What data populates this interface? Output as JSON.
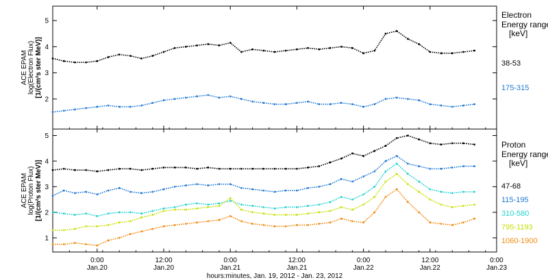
{
  "figure": {
    "xlabel": "hours:minutes, Jan. 19, 2012 - Jan. 23, 2012",
    "x_ticks": [
      {
        "x": 0,
        "time": "0:00",
        "date": "Jan.20"
      },
      {
        "x": 12,
        "time": "12:00",
        "date": "Jan.20"
      },
      {
        "x": 24,
        "time": "0:00",
        "date": "Jan.21"
      },
      {
        "x": 36,
        "time": "12:00",
        "date": "Jan.21"
      },
      {
        "x": 48,
        "time": "0:00",
        "date": "Jan.22"
      },
      {
        "x": 60,
        "time": "12:00",
        "date": "Jan.22"
      },
      {
        "x": 72,
        "time": "0:00",
        "date": "Jan.23"
      }
    ],
    "xlim": [
      -8,
      72
    ]
  },
  "chart_data": [
    {
      "type": "scatter",
      "ylabel": [
        "ACE EPAM",
        "log(Electron Flux)",
        "[1/(cm²s ster MeV)]"
      ],
      "ylim": [
        0.9,
        5.5
      ],
      "y_ticks": [
        2,
        3,
        4,
        5
      ],
      "legend_title": [
        "Electron",
        "Energy range",
        "[keV]"
      ],
      "series": [
        {
          "name": "38-53",
          "color": "#000000",
          "x": [
            -8,
            -6,
            -4,
            -2,
            0,
            2,
            4,
            6,
            8,
            10,
            12,
            14,
            16,
            18,
            20,
            22,
            24,
            26,
            28,
            30,
            32,
            34,
            36,
            38,
            40,
            42,
            44,
            46,
            48,
            50,
            52,
            54,
            56,
            58,
            60,
            62,
            64,
            66,
            68
          ],
          "y": [
            3.55,
            3.45,
            3.4,
            3.4,
            3.45,
            3.6,
            3.7,
            3.65,
            3.55,
            3.65,
            3.8,
            3.95,
            4.0,
            4.05,
            4.1,
            4.05,
            4.15,
            3.8,
            3.9,
            3.85,
            3.8,
            3.85,
            3.9,
            3.95,
            3.9,
            3.95,
            4.0,
            3.95,
            3.75,
            3.85,
            4.5,
            4.6,
            4.3,
            4.1,
            3.8,
            3.75,
            3.75,
            3.8,
            3.85
          ]
        },
        {
          "name": "175-315",
          "color": "#1f78d4",
          "x": [
            -8,
            -6,
            -4,
            -2,
            0,
            2,
            4,
            6,
            8,
            10,
            12,
            14,
            16,
            18,
            20,
            22,
            24,
            26,
            28,
            30,
            32,
            34,
            36,
            38,
            40,
            42,
            44,
            46,
            48,
            50,
            52,
            54,
            56,
            58,
            60,
            62,
            64,
            66,
            68
          ],
          "y": [
            1.5,
            1.55,
            1.6,
            1.65,
            1.7,
            1.75,
            1.7,
            1.7,
            1.75,
            1.85,
            1.95,
            2.0,
            2.05,
            2.1,
            2.15,
            2.05,
            2.1,
            2.0,
            1.9,
            1.85,
            1.8,
            1.8,
            1.85,
            1.9,
            1.8,
            1.8,
            1.85,
            1.8,
            1.7,
            1.8,
            2.0,
            2.05,
            2.0,
            1.95,
            1.8,
            1.75,
            1.7,
            1.75,
            1.8
          ]
        }
      ]
    },
    {
      "type": "scatter",
      "ylabel": [
        "ACE EPAM",
        "log(Proton Flux)",
        "[1/(cm²s ster MeV)]"
      ],
      "ylim": [
        0.5,
        5.2
      ],
      "y_ticks": [
        1,
        2,
        3,
        4,
        5
      ],
      "legend_title": [
        "Proton",
        "Energy range",
        "[keV]"
      ],
      "series": [
        {
          "name": "47-68",
          "color": "#000000",
          "x": [
            -8,
            -6,
            -4,
            -2,
            0,
            2,
            4,
            6,
            8,
            10,
            12,
            14,
            16,
            18,
            20,
            22,
            24,
            26,
            28,
            30,
            32,
            34,
            36,
            38,
            40,
            42,
            44,
            46,
            48,
            50,
            52,
            54,
            56,
            58,
            60,
            62,
            64,
            66,
            68
          ],
          "y": [
            3.65,
            3.7,
            3.65,
            3.65,
            3.6,
            3.65,
            3.7,
            3.7,
            3.65,
            3.7,
            3.75,
            3.75,
            3.75,
            3.7,
            3.75,
            3.7,
            3.7,
            3.7,
            3.7,
            3.7,
            3.7,
            3.7,
            3.7,
            3.75,
            3.8,
            3.95,
            4.1,
            4.3,
            4.2,
            4.4,
            4.6,
            4.9,
            5.0,
            4.85,
            4.7,
            4.65,
            4.7,
            4.7,
            4.65
          ]
        },
        {
          "name": "115-195",
          "color": "#1f78d4",
          "x": [
            -8,
            -6,
            -4,
            -2,
            0,
            2,
            4,
            6,
            8,
            10,
            12,
            14,
            16,
            18,
            20,
            22,
            24,
            26,
            28,
            30,
            32,
            34,
            36,
            38,
            40,
            42,
            44,
            46,
            48,
            50,
            52,
            54,
            56,
            58,
            60,
            62,
            64,
            66,
            68
          ],
          "y": [
            2.65,
            2.85,
            2.75,
            2.8,
            2.7,
            2.85,
            2.95,
            2.8,
            2.75,
            2.8,
            2.9,
            3.0,
            3.05,
            3.1,
            3.05,
            3.1,
            3.1,
            2.95,
            2.9,
            2.85,
            2.8,
            2.85,
            2.85,
            2.95,
            3.0,
            3.1,
            3.3,
            3.2,
            3.4,
            3.6,
            4.0,
            4.2,
            3.9,
            3.8,
            3.7,
            3.7,
            3.75,
            3.8,
            3.8
          ]
        },
        {
          "name": "310-580",
          "color": "#20d0d0",
          "x": [
            -8,
            -6,
            -4,
            -2,
            0,
            2,
            4,
            6,
            8,
            10,
            12,
            14,
            16,
            18,
            20,
            22,
            24,
            26,
            28,
            30,
            32,
            34,
            36,
            38,
            40,
            42,
            44,
            46,
            48,
            50,
            52,
            54,
            56,
            58,
            60,
            62,
            64,
            66,
            68
          ],
          "y": [
            2.0,
            1.95,
            1.9,
            1.95,
            1.85,
            1.95,
            2.0,
            2.0,
            1.95,
            2.05,
            2.15,
            2.2,
            2.3,
            2.35,
            2.3,
            2.35,
            2.45,
            2.3,
            2.25,
            2.2,
            2.15,
            2.2,
            2.2,
            2.25,
            2.3,
            2.4,
            2.6,
            2.5,
            2.7,
            3.0,
            3.6,
            3.9,
            3.5,
            3.2,
            2.9,
            2.8,
            2.75,
            2.8,
            2.8
          ]
        },
        {
          "name": "795-1193",
          "color": "#c8e000",
          "x": [
            -8,
            -6,
            -4,
            -2,
            0,
            2,
            4,
            6,
            8,
            10,
            12,
            14,
            16,
            18,
            20,
            22,
            24,
            26,
            28,
            30,
            32,
            34,
            36,
            38,
            40,
            42,
            44,
            46,
            48,
            50,
            52,
            54,
            56,
            58,
            60,
            62,
            64,
            66,
            68
          ],
          "y": [
            1.3,
            1.3,
            1.35,
            1.45,
            1.45,
            1.5,
            1.6,
            1.65,
            1.8,
            1.9,
            2.05,
            2.1,
            2.1,
            2.15,
            2.2,
            2.25,
            2.55,
            2.1,
            2.0,
            1.95,
            1.9,
            1.9,
            1.9,
            1.95,
            2.0,
            2.05,
            2.2,
            2.1,
            2.3,
            2.6,
            3.2,
            3.5,
            3.1,
            2.8,
            2.5,
            2.3,
            2.2,
            2.25,
            2.3
          ]
        },
        {
          "name": "1060-1900",
          "color": "#f08a10",
          "x": [
            -8,
            -6,
            -4,
            -2,
            0,
            2,
            4,
            6,
            8,
            10,
            12,
            14,
            16,
            18,
            20,
            22,
            24,
            26,
            28,
            30,
            32,
            34,
            36,
            38,
            40,
            42,
            44,
            46,
            48,
            50,
            52,
            54,
            56,
            58,
            60,
            62,
            64,
            66,
            68
          ],
          "y": [
            0.75,
            0.75,
            0.8,
            0.75,
            0.7,
            0.9,
            1.0,
            1.15,
            1.25,
            1.35,
            1.45,
            1.5,
            1.55,
            1.6,
            1.65,
            1.7,
            1.85,
            1.65,
            1.55,
            1.5,
            1.45,
            1.45,
            1.5,
            1.5,
            1.55,
            1.6,
            1.75,
            1.65,
            1.6,
            2.0,
            2.6,
            2.9,
            2.4,
            2.0,
            1.6,
            1.55,
            1.5,
            1.6,
            1.75
          ]
        }
      ]
    }
  ]
}
